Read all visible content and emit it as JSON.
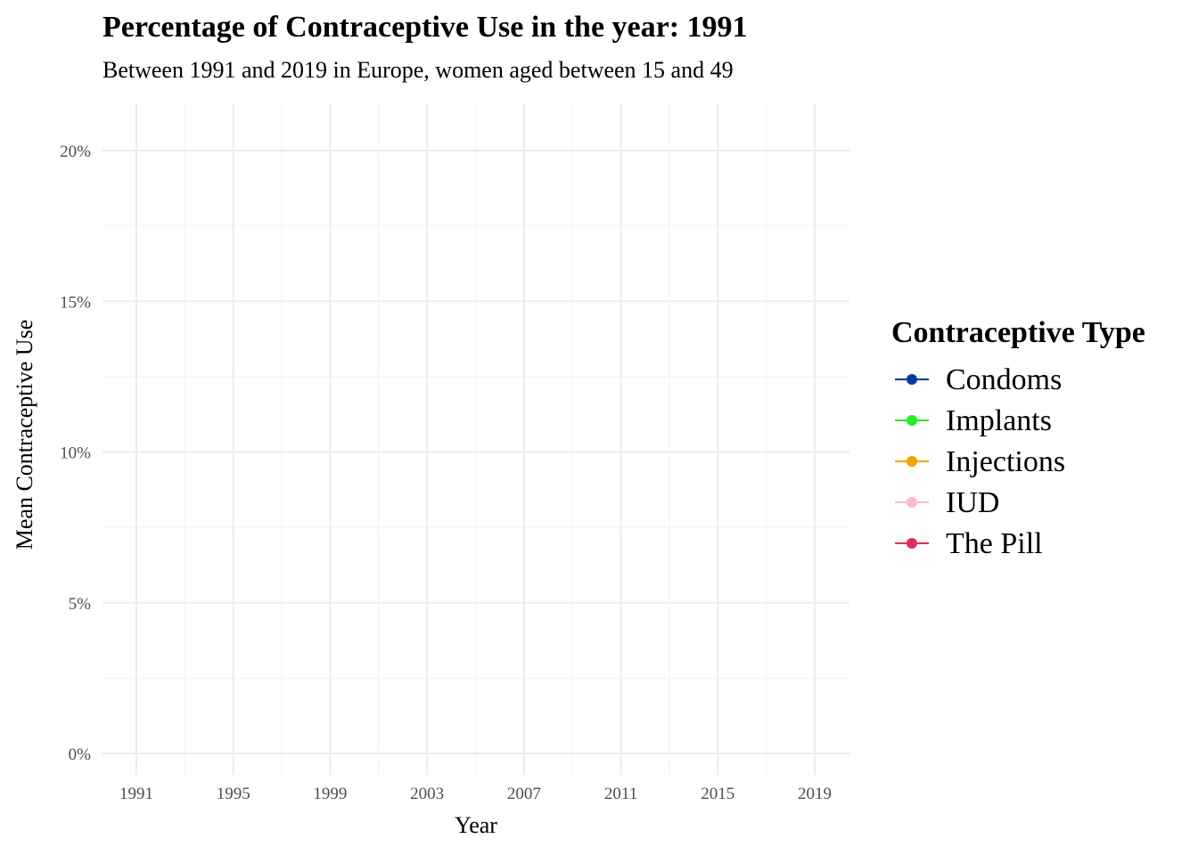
{
  "chart_data": {
    "type": "line",
    "title": "Percentage of Contraceptive Use in the year: 1991",
    "subtitle": "Between 1991 and 2019 in Europe, women aged between 15 and 49",
    "xlabel": "Year",
    "ylabel": "Mean Contraceptive Use",
    "x_ticks": [
      "1991",
      "1995",
      "1999",
      "2003",
      "2007",
      "2011",
      "2015",
      "2019"
    ],
    "y_ticks": [
      "0%",
      "5%",
      "10%",
      "15%",
      "20%"
    ],
    "xlim": [
      1991,
      2019
    ],
    "ylim": [
      0,
      20
    ],
    "grid": true,
    "legend_position": "right",
    "legend_title": "Contraceptive Type",
    "series": [
      {
        "name": "Condoms",
        "color": "#0a3a9e",
        "values": []
      },
      {
        "name": "Implants",
        "color": "#22ee22",
        "values": []
      },
      {
        "name": "Injections",
        "color": "#f5a300",
        "values": []
      },
      {
        "name": "IUD",
        "color": "#f7bcd0",
        "values": []
      },
      {
        "name": "The Pill",
        "color": "#e0305a",
        "values": []
      }
    ]
  }
}
